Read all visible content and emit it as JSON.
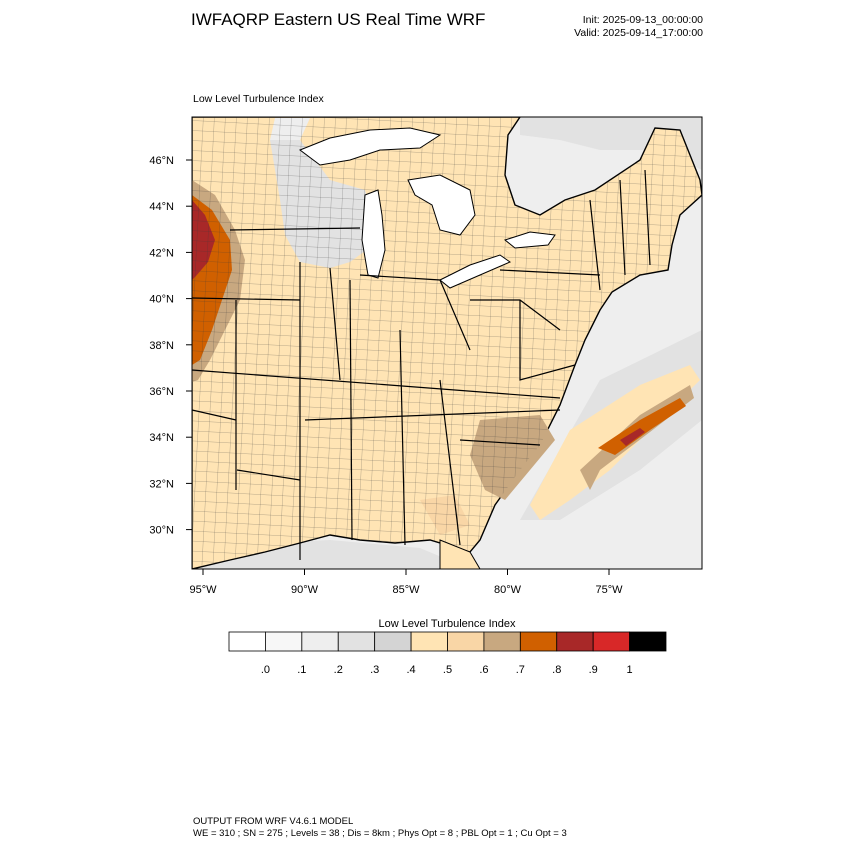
{
  "header": {
    "title": "IWFAQRP Eastern US Real Time WRF",
    "init": "Init: 2025-09-13_00:00:00",
    "valid": "Valid: 2025-09-14_17:00:00"
  },
  "field_title": "Low Level Turbulence Index",
  "axes": {
    "lat_labels": [
      "46°N",
      "44°N",
      "42°N",
      "40°N",
      "38°N",
      "36°N",
      "34°N",
      "32°N",
      "30°N"
    ],
    "lon_labels": [
      "95°W",
      "90°W",
      "85°W",
      "80°W",
      "75°W"
    ]
  },
  "legend": {
    "title": "Low Level Turbulence Index",
    "ticks": [
      ".0",
      ".1",
      ".2",
      ".3",
      ".4",
      ".5",
      ".6",
      ".7",
      ".8",
      ".9",
      "1"
    ],
    "colors": [
      "#ffffff",
      "#f7f7f7",
      "#eeeeee",
      "#e2e2e2",
      "#d4d4d4",
      "#ffe4b4",
      "#f9d6a6",
      "#c8a880",
      "#d06000",
      "#a82828",
      "#d82828",
      "#000000"
    ]
  },
  "colors": {
    "land_base": "#ffe4b4",
    "land_dark": "#f9d6a6",
    "ocean_light": "#eeeeee",
    "ocean_mid": "#e2e2e2",
    "lakes": "#ffffff",
    "high_orange": "#d06000",
    "high_red": "#a82828",
    "outline": "#000000"
  },
  "footer": {
    "line1": "OUTPUT FROM WRF V4.6.1 MODEL",
    "line2": "WE = 310 ; SN = 275 ; Levels = 38 ; Dis = 8km ; Phys Opt = 8 ; PBL Opt = 1 ; Cu Opt = 3"
  }
}
